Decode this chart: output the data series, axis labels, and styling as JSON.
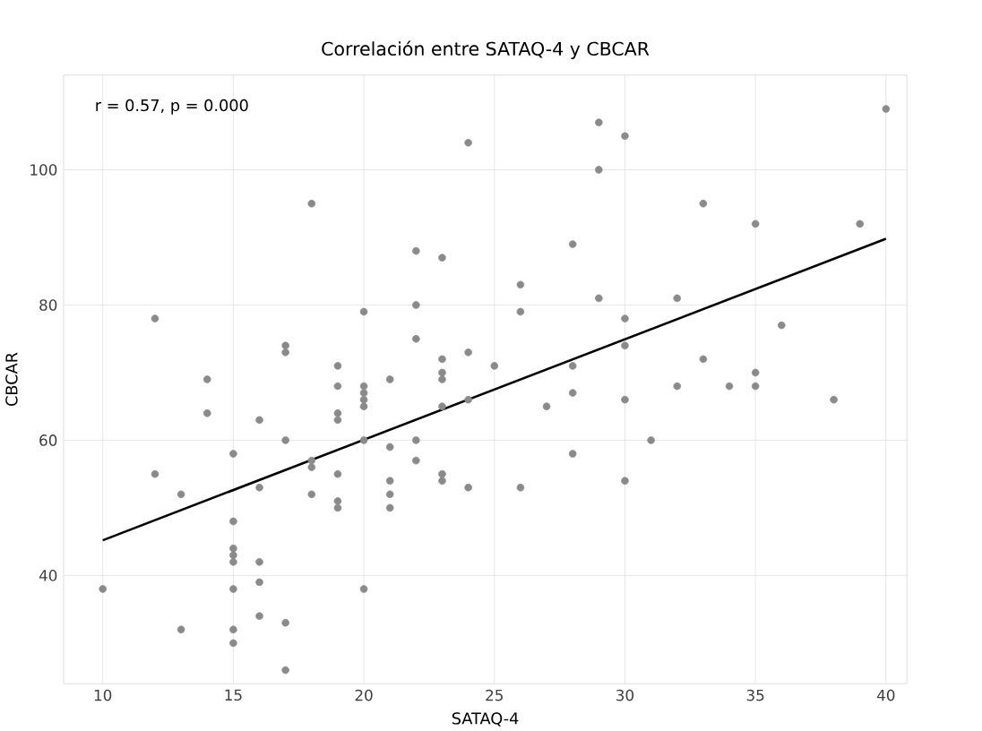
{
  "chart_data": {
    "type": "scatter",
    "title": "Correlación entre SATAQ-4 y CBCAR",
    "xlabel": "SATAQ-4",
    "ylabel": "CBCAR",
    "annotations": [
      "r = 0.57, p = 0.000"
    ],
    "xlim": [
      8.5,
      40.8
    ],
    "ylim": [
      24,
      114
    ],
    "xticks": [
      10,
      15,
      20,
      25,
      30,
      35,
      40
    ],
    "yticks": [
      40,
      60,
      80,
      100
    ],
    "grid": true,
    "series": [
      {
        "marker": "circle",
        "color": "#8a8a8a",
        "x": [
          10,
          12,
          12,
          13,
          13,
          14,
          14,
          15,
          15,
          15,
          15,
          15,
          15,
          15,
          15,
          16,
          16,
          16,
          16,
          16,
          17,
          17,
          17,
          17,
          17,
          18,
          18,
          18,
          18,
          19,
          19,
          19,
          19,
          19,
          19,
          19,
          20,
          20,
          20,
          20,
          20,
          20,
          20,
          21,
          21,
          21,
          21,
          21,
          22,
          22,
          22,
          22,
          22,
          23,
          23,
          23,
          23,
          23,
          23,
          23,
          24,
          24,
          24,
          24,
          25,
          26,
          26,
          26,
          27,
          28,
          28,
          28,
          28,
          29,
          29,
          29,
          30,
          30,
          30,
          30,
          30,
          31,
          32,
          32,
          33,
          33,
          34,
          35,
          35,
          35,
          36,
          38,
          39,
          40
        ],
        "values": [
          38,
          78,
          55,
          52,
          32,
          69,
          64,
          58,
          48,
          44,
          43,
          42,
          38,
          32,
          30,
          63,
          53,
          42,
          39,
          34,
          74,
          73,
          60,
          33,
          26,
          95,
          57,
          56,
          52,
          71,
          68,
          64,
          63,
          55,
          51,
          50,
          79,
          68,
          67,
          66,
          65,
          60,
          38,
          69,
          59,
          54,
          52,
          50,
          88,
          80,
          75,
          60,
          57,
          87,
          72,
          70,
          69,
          65,
          55,
          54,
          104,
          73,
          66,
          53,
          71,
          83,
          79,
          53,
          65,
          89,
          71,
          67,
          58,
          107,
          100,
          81,
          105,
          78,
          74,
          66,
          54,
          60,
          81,
          68,
          95,
          72,
          68,
          92,
          70,
          68,
          77,
          66,
          92,
          109
        ]
      },
      {
        "type": "line",
        "marker": "none",
        "color": "#000000",
        "x": [
          10,
          40
        ],
        "values": [
          45.2,
          89.8
        ]
      }
    ]
  }
}
